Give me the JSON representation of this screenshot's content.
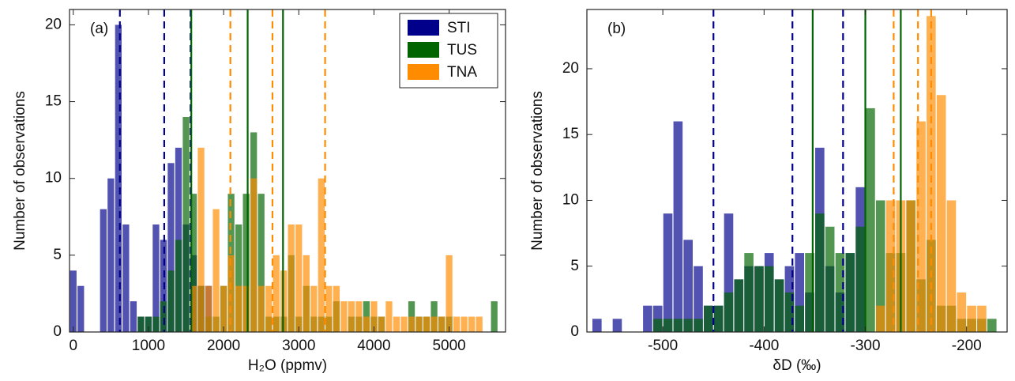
{
  "chart_data": [
    {
      "type": "histogram",
      "panel_label": "(a)",
      "xlabel": "H₂O (ppmv)",
      "ylabel": "Number of observations",
      "xlim": [
        -50,
        5750
      ],
      "xticks": [
        0,
        1000,
        2000,
        3000,
        4000,
        5000
      ],
      "ylim": [
        0,
        21
      ],
      "yticks": [
        0,
        5,
        10,
        15,
        20
      ],
      "legend": "upper right",
      "series": [
        {
          "name": "STI",
          "color": "#00008b",
          "line_style": "dashed",
          "lines": [
            620,
            1210,
            1560
          ],
          "bins": [
            -50,
            50,
            150,
            250,
            350,
            450,
            550,
            650,
            750,
            850,
            950,
            1050,
            1150,
            1250,
            1350,
            1450,
            1550,
            1650,
            1750,
            1850
          ],
          "values": [
            4,
            3,
            0,
            0,
            8,
            10,
            20,
            7,
            2,
            1,
            1,
            7,
            6,
            11,
            12,
            7,
            5,
            3,
            3
          ]
        },
        {
          "name": "TUS",
          "color": "#006400",
          "line_style": "solid",
          "lines": [
            1570,
            2320,
            2790
          ],
          "bins": [
            850,
            950,
            1050,
            1150,
            1250,
            1350,
            1450,
            1550,
            1650,
            1750,
            1850,
            1950,
            2050,
            2150,
            2250,
            2350,
            2450,
            2550,
            2650,
            2750,
            2850,
            2950,
            3050,
            3150,
            3250,
            3350,
            3450,
            3550,
            3650,
            3750,
            3850,
            3950,
            4050,
            4150,
            4250,
            4350,
            4450,
            4550,
            4650,
            4750,
            4850,
            4950,
            5050,
            5150,
            5250,
            5350,
            5450,
            5550,
            5650,
            5750
          ],
          "values": [
            1,
            1,
            1,
            2,
            4,
            6,
            14,
            9,
            3,
            1,
            1,
            3,
            9,
            7,
            9,
            13,
            9,
            1,
            1,
            1,
            5,
            1,
            3,
            1,
            1,
            1,
            2,
            0,
            1,
            1,
            2,
            1,
            1,
            0,
            0,
            0,
            2,
            1,
            1,
            2,
            1,
            1,
            0,
            0,
            0,
            0,
            0,
            2,
            0
          ]
        },
        {
          "name": "TNA",
          "color": "#ff8c00",
          "line_style": "dashed",
          "lines": [
            2090,
            2650,
            3350
          ],
          "bins": [
            1550,
            1650,
            1750,
            1850,
            1950,
            2050,
            2150,
            2250,
            2350,
            2450,
            2550,
            2650,
            2750,
            2850,
            2950,
            3050,
            3150,
            3250,
            3350,
            3450,
            3550,
            3650,
            3750,
            3850,
            3950,
            4050,
            4150,
            4250,
            4350,
            4450,
            4550,
            4650,
            4750,
            4850,
            4950,
            5050,
            5150,
            5250,
            5350,
            5450
          ],
          "values": [
            3,
            12,
            3,
            8,
            3,
            5,
            3,
            3,
            10,
            3,
            3,
            5,
            4,
            7,
            7,
            5,
            3,
            10,
            3,
            3,
            2,
            2,
            2,
            1,
            2,
            1,
            2,
            1,
            1,
            1,
            1,
            1,
            1,
            1,
            5,
            1,
            1,
            1,
            1
          ]
        }
      ]
    },
    {
      "type": "histogram",
      "panel_label": "(b)",
      "xlabel": "δD (‰)",
      "ylabel": "Number of observations",
      "xlim": [
        -575,
        -160
      ],
      "xticks": [
        -500,
        -400,
        -300,
        -200
      ],
      "ylim": [
        0,
        24.5
      ],
      "yticks": [
        0,
        5,
        10,
        15,
        20
      ],
      "series": [
        {
          "color": "#00008b",
          "line_style": "dashed",
          "lines": [
            -450,
            -372,
            -322
          ],
          "bins": [
            -570,
            -560,
            -550,
            -540,
            -530,
            -520,
            -510,
            -500,
            -490,
            -480,
            -470,
            -460,
            -450,
            -440,
            -430,
            -420,
            -410,
            -400,
            -390,
            -380,
            -370,
            -360,
            -350,
            -340,
            -330,
            -320,
            -310,
            -300
          ],
          "values": [
            1,
            0,
            1,
            0,
            0,
            2,
            2,
            9,
            16,
            7,
            5,
            2,
            2,
            9,
            4,
            5,
            5,
            6,
            4,
            5,
            6,
            3,
            14,
            5,
            3,
            6,
            11
          ]
        },
        {
          "color": "#006400",
          "line_style": "solid",
          "lines": [
            -352,
            -300,
            -265
          ],
          "bins": [
            -510,
            -500,
            -490,
            -480,
            -470,
            -460,
            -450,
            -440,
            -430,
            -420,
            -410,
            -400,
            -390,
            -380,
            -370,
            -360,
            -350,
            -340,
            -330,
            -320,
            -310,
            -300,
            -290,
            -280,
            -270,
            -260,
            -250,
            -240,
            -230,
            -220,
            -210,
            -200,
            -190,
            -180,
            -170
          ],
          "values": [
            1,
            1,
            1,
            1,
            1,
            2,
            2,
            3,
            4,
            6,
            5,
            5,
            4,
            3,
            2,
            6,
            9,
            8,
            6,
            6,
            8,
            17,
            10,
            6,
            6,
            10,
            4,
            7,
            2,
            2,
            1,
            1,
            1,
            1
          ]
        },
        {
          "color": "#ff8c00",
          "line_style": "dashed",
          "lines": [
            -272,
            -248,
            -235
          ],
          "bins": [
            -290,
            -280,
            -270,
            -260,
            -250,
            -240,
            -230,
            -220,
            -210,
            -200,
            -190,
            -180
          ],
          "values": [
            2,
            10,
            10,
            10,
            16,
            24,
            18,
            10,
            3,
            2,
            2
          ]
        }
      ]
    }
  ]
}
